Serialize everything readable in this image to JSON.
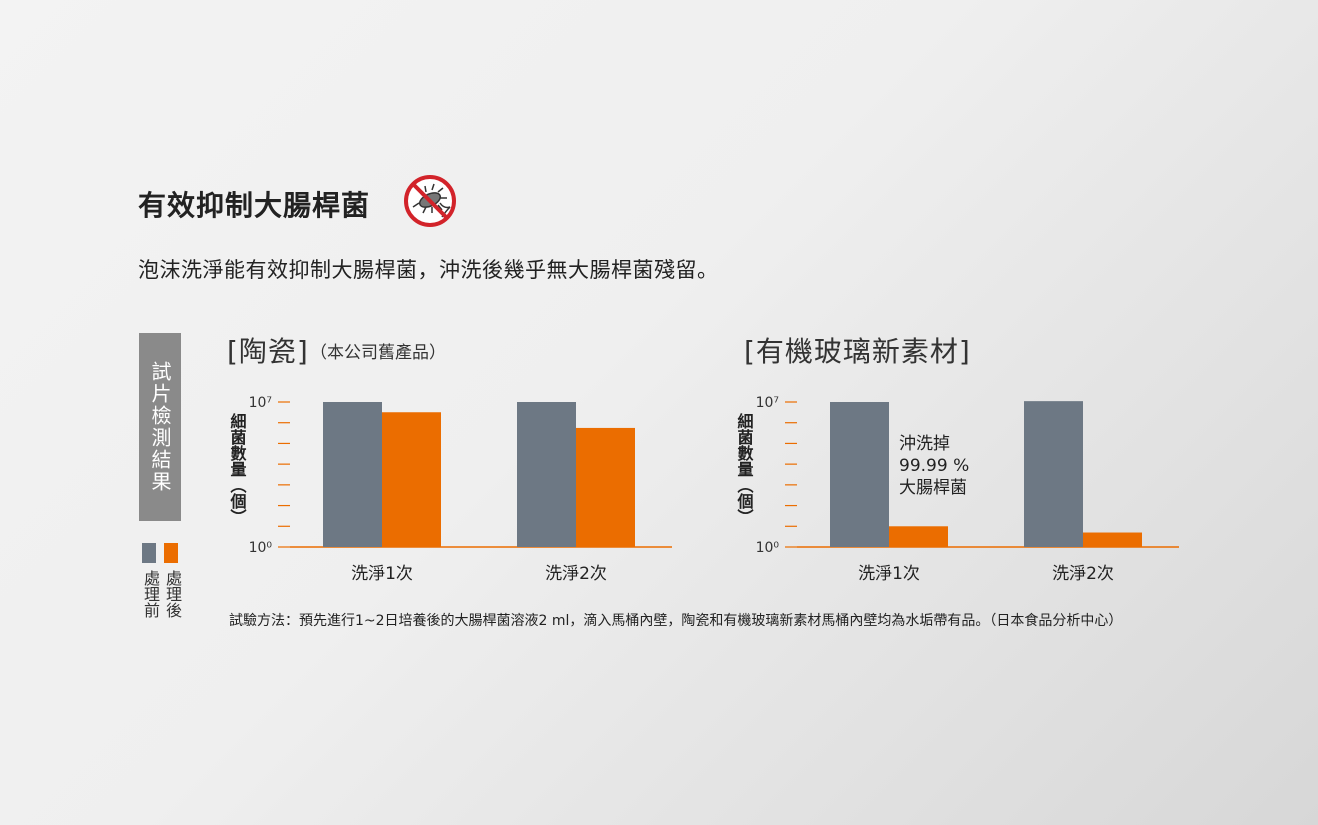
{
  "header": {
    "title": "有效抑制大腸桿菌",
    "subtitle": "泡沫洗淨能有效抑制大腸桿菌，沖洗後幾乎無大腸桿菌殘留。"
  },
  "sidebar": {
    "label": "試片檢測結果"
  },
  "legend": {
    "before_label": "處理前",
    "after_label": "處理後",
    "before_color": "#6d7884",
    "after_color": "#eb6d00"
  },
  "chart_data": [
    {
      "type": "bar",
      "title": "[陶瓷]",
      "subtitle": "（本公司舊產品）",
      "ylabel": "細菌數量（個）",
      "y_scale": "log",
      "ylim": [
        1,
        10000000
      ],
      "y_tick_labels": [
        "10⁰",
        "10⁷"
      ],
      "categories": [
        "洗淨1次",
        "洗淨2次"
      ],
      "series": [
        {
          "name": "處理前",
          "values": [
            10000000,
            10000000
          ]
        },
        {
          "name": "處理後",
          "values": [
            3200000,
            560000
          ]
        }
      ],
      "annotation": ""
    },
    {
      "type": "bar",
      "title": "[有機玻璃新素材]",
      "subtitle": "",
      "ylabel": "細菌數量（個）",
      "y_scale": "log",
      "ylim": [
        1,
        10000000
      ],
      "y_tick_labels": [
        "10⁰",
        "10⁷"
      ],
      "categories": [
        "洗淨1次",
        "洗淨2次"
      ],
      "series": [
        {
          "name": "處理前",
          "values": [
            10000000,
            11000000
          ]
        },
        {
          "name": "處理後",
          "values": [
            10,
            5
          ]
        }
      ],
      "annotation": "沖洗掉\n99.99 %\n大腸桿菌"
    }
  ],
  "footnote": "試驗方法：預先進行1~2日培養後的大腸桿菌溶液2 ml，滴入馬桶內壁，陶瓷和有機玻璃新素材馬桶內壁均為水垢帶有品。（日本食品分析中心）",
  "icons": {
    "no_bacteria": "no-bacteria-icon"
  }
}
